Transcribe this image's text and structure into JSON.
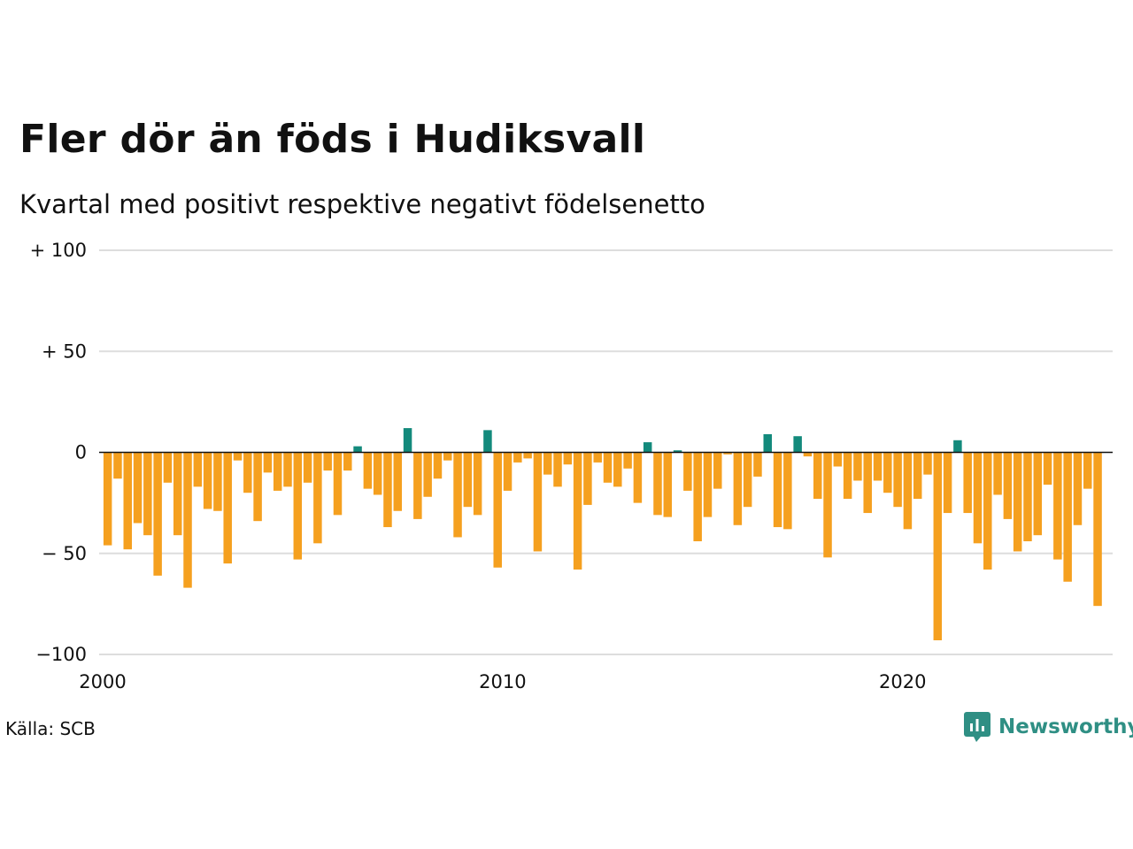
{
  "title": "Fler dör än föds i Hudiksvall",
  "subtitle": "Kvartal med positivt respektive negativt födelsenetto",
  "source": "Källa: SCB",
  "brand": {
    "name": "Newsworthy",
    "icon": "newsworthy-logo-icon",
    "color": "#2f8f84"
  },
  "colors": {
    "positive": "#138a7c",
    "negative": "#f5a01f",
    "grid": "#dddddd",
    "zero_line": "#111111"
  },
  "chart_data": {
    "type": "bar",
    "title": "Fler dör än föds i Hudiksvall",
    "subtitle": "Kvartal med positivt respektive negativt födelsenetto",
    "xlabel": "",
    "ylabel": "",
    "ylim": [
      -100,
      100
    ],
    "xlim": [
      2000,
      2025
    ],
    "grid": true,
    "y_ticks": [
      {
        "value": 100,
        "label": "+ 100"
      },
      {
        "value": 50,
        "label": "+  50"
      },
      {
        "value": 0,
        "label": "0"
      },
      {
        "value": -50,
        "label": "− 50"
      },
      {
        "value": -100,
        "label": "−100"
      }
    ],
    "x_ticks": [
      {
        "value": 2000,
        "label": "2000"
      },
      {
        "value": 2010,
        "label": "2010"
      },
      {
        "value": 2020,
        "label": "2020"
      }
    ],
    "categories": [
      "2000 K1",
      "2000 K2",
      "2000 K3",
      "2000 K4",
      "2001 K1",
      "2001 K2",
      "2001 K3",
      "2001 K4",
      "2002 K1",
      "2002 K2",
      "2002 K3",
      "2002 K4",
      "2003 K1",
      "2003 K2",
      "2003 K3",
      "2003 K4",
      "2004 K1",
      "2004 K2",
      "2004 K3",
      "2004 K4",
      "2005 K1",
      "2005 K2",
      "2005 K3",
      "2005 K4",
      "2006 K1",
      "2006 K2",
      "2006 K3",
      "2006 K4",
      "2007 K1",
      "2007 K2",
      "2007 K3",
      "2007 K4",
      "2008 K1",
      "2008 K2",
      "2008 K3",
      "2008 K4",
      "2009 K1",
      "2009 K2",
      "2009 K3",
      "2009 K4",
      "2010 K1",
      "2010 K2",
      "2010 K3",
      "2010 K4",
      "2011 K1",
      "2011 K2",
      "2011 K3",
      "2011 K4",
      "2012 K1",
      "2012 K2",
      "2012 K3",
      "2012 K4",
      "2013 K1",
      "2013 K2",
      "2013 K3",
      "2013 K4",
      "2014 K1",
      "2014 K2",
      "2014 K3",
      "2014 K4",
      "2015 K1",
      "2015 K2",
      "2015 K3",
      "2015 K4",
      "2016 K1",
      "2016 K2",
      "2016 K3",
      "2016 K4",
      "2017 K1",
      "2017 K2",
      "2017 K3",
      "2017 K4",
      "2018 K1",
      "2018 K2",
      "2018 K3",
      "2018 K4",
      "2019 K1",
      "2019 K2",
      "2019 K3",
      "2019 K4",
      "2020 K1",
      "2020 K2",
      "2020 K3",
      "2020 K4",
      "2021 K1",
      "2021 K2",
      "2021 K3",
      "2021 K4",
      "2022 K1",
      "2022 K2",
      "2022 K3",
      "2022 K4",
      "2023 K1",
      "2023 K2",
      "2023 K3",
      "2023 K4",
      "2024 K1",
      "2024 K2",
      "2024 K3",
      "2024 K4",
      "2025 K1"
    ],
    "values": [
      -46,
      -13,
      -48,
      -35,
      -41,
      -61,
      -15,
      -41,
      -67,
      -17,
      -28,
      -29,
      -55,
      -4,
      -20,
      -34,
      -10,
      -19,
      -17,
      -53,
      -15,
      -45,
      -9,
      -31,
      -9,
      3,
      -18,
      -21,
      -37,
      -29,
      12,
      -33,
      -22,
      -13,
      -4,
      -42,
      -27,
      -31,
      11,
      -57,
      -19,
      -5,
      -3,
      -49,
      -11,
      -17,
      -6,
      -58,
      -26,
      -5,
      -15,
      -17,
      -8,
      -25,
      5,
      -31,
      -32,
      1,
      -19,
      -44,
      -32,
      -18,
      -1,
      -36,
      -27,
      -12,
      9,
      -37,
      -38,
      8,
      -2,
      -23,
      -52,
      -7,
      -23,
      -14,
      -30,
      -14,
      -20,
      -27,
      -38,
      -23,
      -11,
      -93,
      -30,
      6,
      -30,
      -45,
      -58,
      -21,
      -33,
      -49,
      -44,
      -41,
      -16,
      -53,
      -64,
      -36,
      -18,
      -76,
      0
    ]
  }
}
